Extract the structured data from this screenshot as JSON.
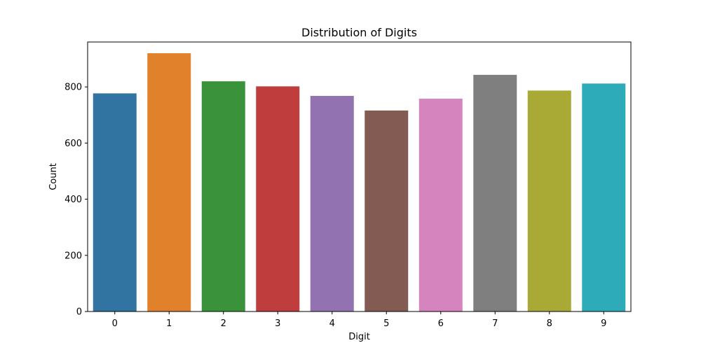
{
  "chart_data": {
    "type": "bar",
    "title": "Distribution of Digits",
    "xlabel": "Digit",
    "ylabel": "Count",
    "categories": [
      "0",
      "1",
      "2",
      "3",
      "4",
      "5",
      "6",
      "7",
      "8",
      "9"
    ],
    "values": [
      777,
      920,
      820,
      802,
      768,
      716,
      758,
      843,
      787,
      812
    ],
    "colors": [
      "#3274a1",
      "#e1812c",
      "#3a923a",
      "#c03d3e",
      "#9372b2",
      "#845b53",
      "#d684bd",
      "#7f7f7f",
      "#a9aa35",
      "#2eabb8"
    ],
    "ylim": [
      0,
      960
    ],
    "yticks": [
      "0",
      "200",
      "400",
      "600",
      "800"
    ],
    "grid": false,
    "legend": "none"
  }
}
